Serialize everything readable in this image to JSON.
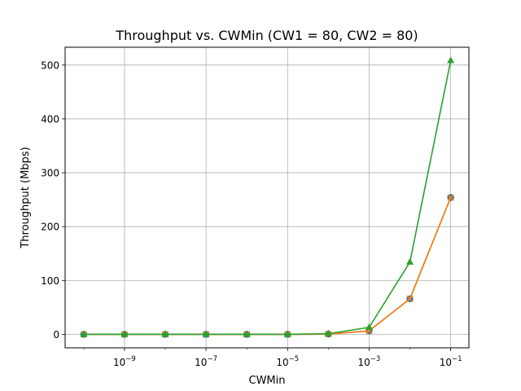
{
  "chart_data": {
    "type": "line",
    "title": "Throughput vs. CWMin (CW1 = 80, CW2 = 80)",
    "xlabel": "CWMin",
    "ylabel": "Throughput (Mbps)",
    "x_scale": "log",
    "x": [
      1e-10,
      1e-09,
      1e-08,
      1e-07,
      1e-06,
      1e-05,
      0.0001,
      0.001,
      0.01,
      0.1
    ],
    "xlim": [
      3.5e-11,
      0.28
    ],
    "ylim": [
      -25,
      533
    ],
    "x_ticks": [
      {
        "value": 1e-09,
        "base": "10",
        "exp": "−9"
      },
      {
        "value": 1e-07,
        "base": "10",
        "exp": "−7"
      },
      {
        "value": 1e-05,
        "base": "10",
        "exp": "−5"
      },
      {
        "value": 0.001,
        "base": "10",
        "exp": "−3"
      },
      {
        "value": 0.1,
        "base": "10",
        "exp": "−1"
      }
    ],
    "y_ticks": [
      0,
      100,
      200,
      300,
      400,
      500
    ],
    "grid": true,
    "series": [
      {
        "marker": "circle",
        "color": "#1f77b4",
        "values": [
          0,
          0,
          0,
          0,
          0,
          0,
          0.5,
          6.5,
          66,
          254
        ]
      },
      {
        "marker": "x",
        "color": "#ff7f0e",
        "values": [
          0,
          0,
          0,
          0,
          0,
          0,
          0.5,
          6.5,
          66,
          254
        ]
      },
      {
        "marker": "triangle",
        "color": "#2ca02c",
        "values": [
          0,
          0,
          0,
          0,
          0,
          0,
          1.3,
          13,
          134,
          508
        ]
      }
    ]
  }
}
